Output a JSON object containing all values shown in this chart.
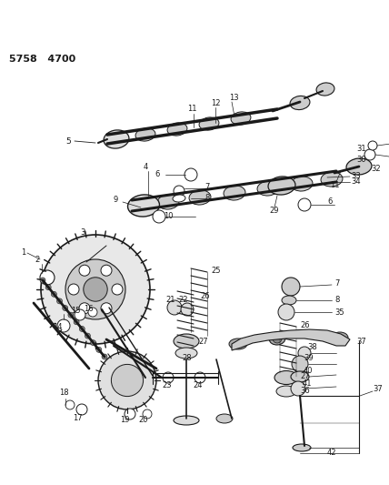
{
  "bg_color": "#ffffff",
  "fg_color": "#1a1a1a",
  "title": "5758   4700",
  "figsize": [
    4.28,
    5.33
  ],
  "dpi": 100
}
